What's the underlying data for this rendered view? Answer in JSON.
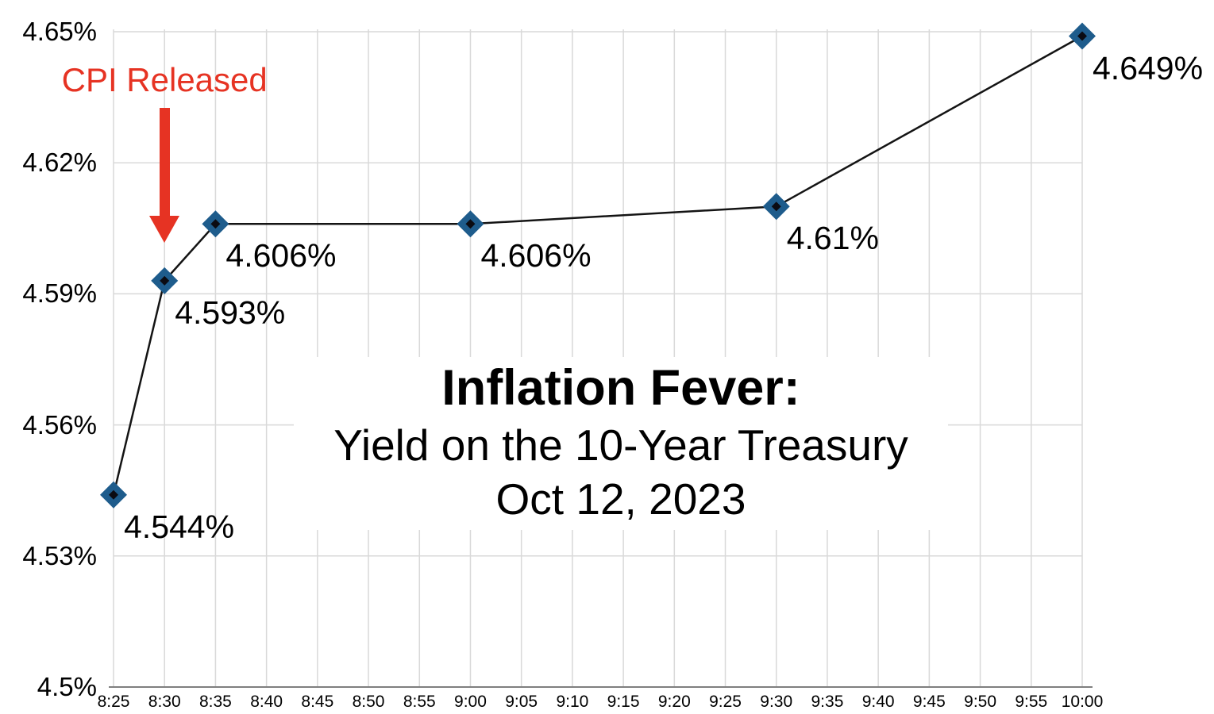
{
  "chart_data": {
    "type": "line",
    "title": "Inflation Fever:",
    "subtitle": "Yield on the 10-Year Treasury",
    "date": "Oct 12, 2023",
    "xlabel": "",
    "ylabel": "",
    "grid": true,
    "legend": "none",
    "ylim": [
      4.5,
      4.65
    ],
    "x_ticks": [
      "8:25",
      "8:30",
      "8:35",
      "8:40",
      "8:45",
      "8:50",
      "8:55",
      "9:00",
      "9:05",
      "9:10",
      "9:15",
      "9:20",
      "9:25",
      "9:30",
      "9:35",
      "9:40",
      "9:45",
      "9:50",
      "9:55",
      "10:00"
    ],
    "y_ticks": [
      {
        "value": 4.65,
        "label": "4.65%"
      },
      {
        "value": 4.62,
        "label": "4.62%"
      },
      {
        "value": 4.59,
        "label": "4.59%"
      },
      {
        "value": 4.56,
        "label": "4.56%"
      },
      {
        "value": 4.53,
        "label": "4.53%"
      },
      {
        "value": 4.5,
        "label": "4.5%"
      }
    ],
    "series": [
      {
        "name": "10-Year Treasury Yield",
        "points": [
          {
            "time": "8:25",
            "value": 4.544,
            "label": "4.544%"
          },
          {
            "time": "8:30",
            "value": 4.593,
            "label": "4.593%"
          },
          {
            "time": "8:35",
            "value": 4.606,
            "label": "4.606%"
          },
          {
            "time": "9:00",
            "value": 4.606,
            "label": "4.606%"
          },
          {
            "time": "9:30",
            "value": 4.61,
            "label": "4.61%"
          },
          {
            "time": "10:00",
            "value": 4.649,
            "label": "4.649%"
          }
        ]
      }
    ],
    "annotation": {
      "text": "CPI Released",
      "points_at": "8:30"
    },
    "colors": {
      "background": "#FFFFFF",
      "gridline": "#D9D9D9",
      "axis": "#7F7F7F",
      "line": "#141414",
      "marker_fill": "#1E5C8C",
      "marker_core": "#0B0B12",
      "annotation_red": "#E63323",
      "text": "#000000"
    }
  }
}
